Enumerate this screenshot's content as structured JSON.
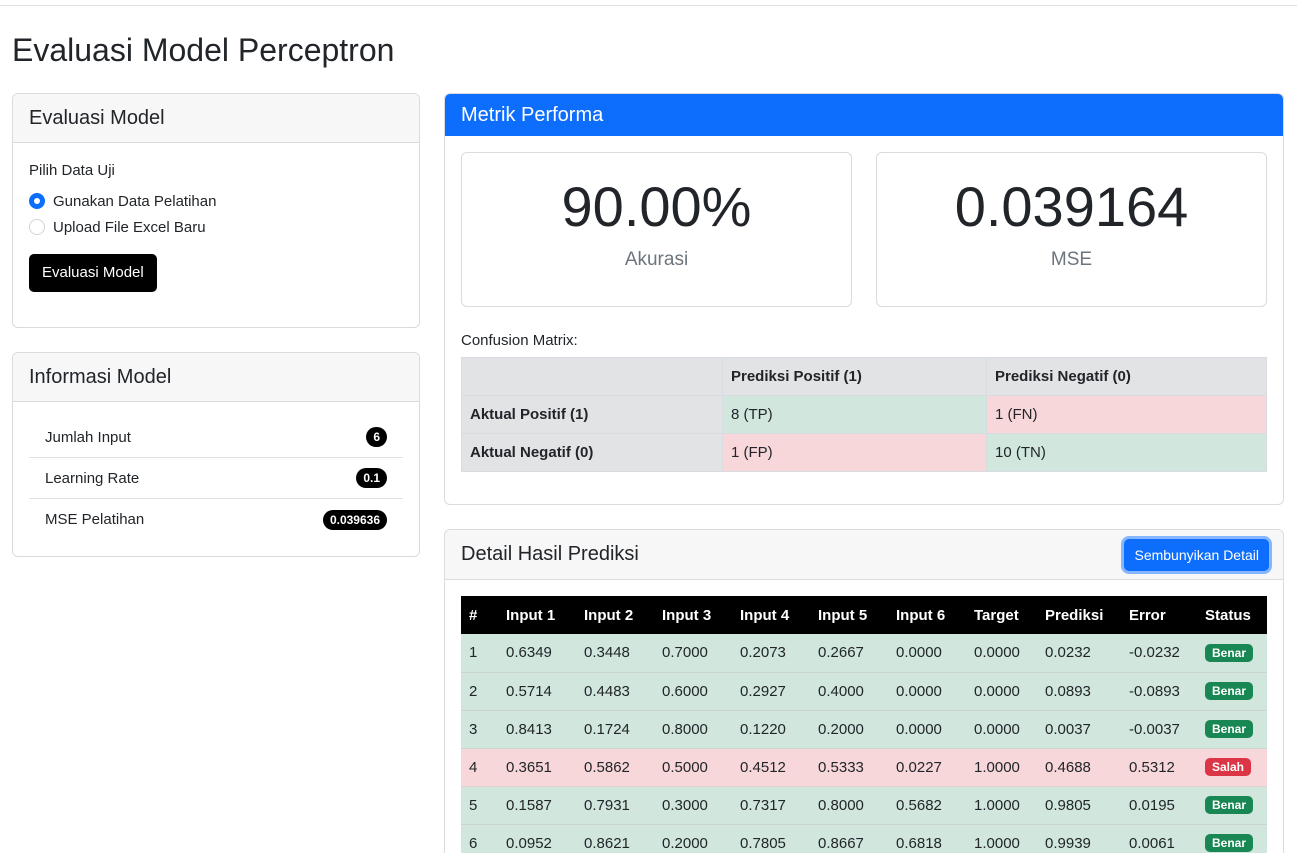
{
  "page": {
    "title": "Evaluasi Model Perceptron"
  },
  "eval_card": {
    "header": "Evaluasi Model",
    "data_label": "Pilih Data Uji",
    "options": [
      {
        "label": "Gunakan Data Pelatihan",
        "checked": true
      },
      {
        "label": "Upload File Excel Baru",
        "checked": false
      }
    ],
    "button_label": "Evaluasi Model"
  },
  "info_card": {
    "header": "Informasi Model",
    "items": [
      {
        "label": "Jumlah Input",
        "value": "6"
      },
      {
        "label": "Learning Rate",
        "value": "0.1"
      },
      {
        "label": "MSE Pelatihan",
        "value": "0.039636"
      }
    ]
  },
  "metrics_card": {
    "header": "Metrik Performa",
    "accuracy": {
      "value": "90.00%",
      "label": "Akurasi"
    },
    "mse": {
      "value": "0.039164",
      "label": "MSE"
    },
    "cm_title": "Confusion Matrix:",
    "cm_headers": [
      "",
      "Prediksi Positif (1)",
      "Prediksi Negatif (0)"
    ],
    "cm_rows": [
      {
        "label": "Aktual Positif (1)",
        "cells": [
          "8 (TP)",
          "1 (FN)"
        ]
      },
      {
        "label": "Aktual Negatif (0)",
        "cells": [
          "1 (FP)",
          "10 (TN)"
        ]
      }
    ]
  },
  "detail_card": {
    "header": "Detail Hasil Prediksi",
    "toggle_button": "Sembunyikan Detail",
    "columns": [
      "#",
      "Input 1",
      "Input 2",
      "Input 3",
      "Input 4",
      "Input 5",
      "Input 6",
      "Target",
      "Prediksi",
      "Error",
      "Status"
    ],
    "rows": [
      [
        "1",
        "0.6349",
        "0.3448",
        "0.7000",
        "0.2073",
        "0.2667",
        "0.0000",
        "0.0000",
        "0.0232",
        "-0.0232",
        "Benar"
      ],
      [
        "2",
        "0.5714",
        "0.4483",
        "0.6000",
        "0.2927",
        "0.4000",
        "0.0000",
        "0.0000",
        "0.0893",
        "-0.0893",
        "Benar"
      ],
      [
        "3",
        "0.8413",
        "0.1724",
        "0.8000",
        "0.1220",
        "0.2000",
        "0.0000",
        "0.0000",
        "0.0037",
        "-0.0037",
        "Benar"
      ],
      [
        "4",
        "0.3651",
        "0.5862",
        "0.5000",
        "0.4512",
        "0.5333",
        "0.0227",
        "1.0000",
        "0.4688",
        "0.5312",
        "Salah"
      ],
      [
        "5",
        "0.1587",
        "0.7931",
        "0.3000",
        "0.7317",
        "0.8000",
        "0.5682",
        "1.0000",
        "0.9805",
        "0.0195",
        "Benar"
      ],
      [
        "6",
        "0.0952",
        "0.8621",
        "0.2000",
        "0.7805",
        "0.8667",
        "0.6818",
        "1.0000",
        "0.9939",
        "0.0061",
        "Benar"
      ]
    ]
  }
}
